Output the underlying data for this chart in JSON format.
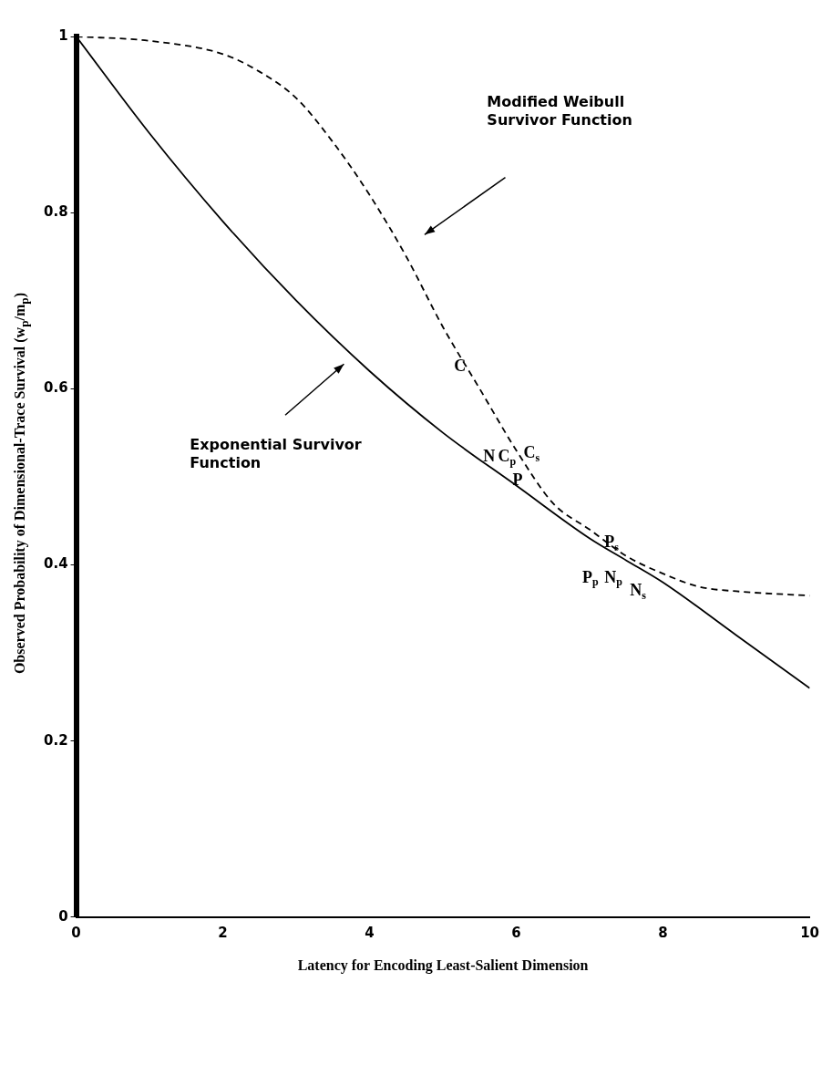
{
  "chart_data": {
    "type": "line",
    "xlabel": "Latency for Encoding Least-Salient Dimension",
    "ylabel": "Observed Probability of Dimensional-Trace Survival (w$_{p}$/m$_{p}$)",
    "xlim": [
      0,
      10
    ],
    "xticks": [
      0,
      2,
      4,
      6,
      8,
      10
    ],
    "ylim": [
      0,
      1
    ],
    "yticks": [
      0,
      0.2,
      0.4,
      0.6,
      0.8,
      1
    ],
    "grid": false,
    "legend": false,
    "marker": "none",
    "series": [
      {
        "color": "#000000",
        "line_style": "solid",
        "x": [
          0,
          1,
          2,
          3,
          4,
          5,
          6,
          7,
          7.5,
          8,
          9,
          10
        ],
        "values": [
          1,
          0.89,
          0.79,
          0.7,
          0.62,
          0.55,
          0.49,
          0.43,
          0.405,
          0.38,
          0.32,
          0.26
        ]
      },
      {
        "color": "#000000",
        "line_style": "dashed",
        "x": [
          0,
          1,
          2,
          2.5,
          3,
          3.5,
          4,
          4.5,
          5,
          5.5,
          6,
          6.5,
          7,
          7.5,
          8,
          8.5,
          9,
          10
        ],
        "values": [
          1,
          0.995,
          0.98,
          0.96,
          0.93,
          0.88,
          0.82,
          0.75,
          0.67,
          0.6,
          0.53,
          0.47,
          0.44,
          0.41,
          0.39,
          0.375,
          0.37,
          0.365
        ]
      }
    ],
    "annotations": [
      "Modified Weibull\nSurvivor Function",
      "Exponential Survivor\nFunction",
      "C",
      "N",
      "C$_{p}$",
      "C$_{s}$",
      "P",
      "P$_{s}$",
      "P$_{p}$",
      "N$_{p}$",
      "N$_{s}$"
    ]
  }
}
